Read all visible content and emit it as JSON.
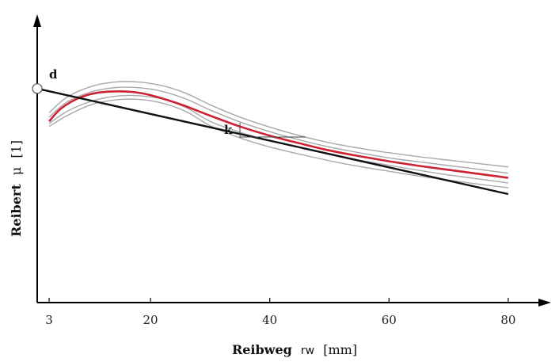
{
  "chart_data": {
    "type": "line",
    "title": "",
    "xlabel": {
      "bold": "Reibweg",
      "symbol": "rw",
      "unit": "[mm]"
    },
    "ylabel": {
      "bold": "Reibert",
      "symbol": "μ",
      "unit": "[1]"
    },
    "x_ticks": [
      3,
      20,
      40,
      60,
      80
    ],
    "x_tick_labels": [
      "3",
      "20",
      "40",
      "60",
      "80"
    ],
    "xlim": [
      1,
      84
    ],
    "ylim": [
      0,
      1
    ],
    "y_ticks": [],
    "grid": false,
    "legend": "none",
    "annotations": [
      {
        "label": "d",
        "meaning": "intercept marker"
      },
      {
        "label": "k",
        "meaning": "slope triangle"
      }
    ],
    "colors": {
      "mean": "#cc2233",
      "band": "#a8a8a8",
      "fit": "#111111"
    },
    "series": [
      {
        "role": "mean",
        "points": [
          [
            3,
            0.63
          ],
          [
            5,
            0.675
          ],
          [
            8,
            0.712
          ],
          [
            11,
            0.73
          ],
          [
            14,
            0.735
          ],
          [
            17,
            0.733
          ],
          [
            20,
            0.722
          ],
          [
            25,
            0.69
          ],
          [
            30,
            0.65
          ],
          [
            35,
            0.612
          ],
          [
            40,
            0.58
          ],
          [
            45,
            0.553
          ],
          [
            50,
            0.528
          ],
          [
            55,
            0.508
          ],
          [
            60,
            0.49
          ],
          [
            65,
            0.474
          ],
          [
            70,
            0.46
          ],
          [
            75,
            0.446
          ],
          [
            80,
            0.432
          ]
        ]
      },
      {
        "role": "band",
        "points": [
          [
            3,
            0.66
          ],
          [
            6,
            0.715
          ],
          [
            10,
            0.752
          ],
          [
            14,
            0.768
          ],
          [
            18,
            0.768
          ],
          [
            22,
            0.755
          ],
          [
            26,
            0.728
          ],
          [
            30,
            0.688
          ],
          [
            35,
            0.645
          ],
          [
            40,
            0.61
          ],
          [
            45,
            0.58
          ],
          [
            50,
            0.555
          ],
          [
            55,
            0.536
          ],
          [
            60,
            0.52
          ],
          [
            65,
            0.506
          ],
          [
            70,
            0.494
          ],
          [
            75,
            0.482
          ],
          [
            80,
            0.47
          ]
        ]
      },
      {
        "role": "band",
        "points": [
          [
            3,
            0.645
          ],
          [
            6,
            0.698
          ],
          [
            10,
            0.733
          ],
          [
            14,
            0.748
          ],
          [
            18,
            0.748
          ],
          [
            22,
            0.735
          ],
          [
            26,
            0.708
          ],
          [
            30,
            0.67
          ],
          [
            35,
            0.628
          ],
          [
            40,
            0.594
          ],
          [
            45,
            0.565
          ],
          [
            50,
            0.54
          ],
          [
            55,
            0.52
          ],
          [
            60,
            0.502
          ],
          [
            65,
            0.488
          ],
          [
            70,
            0.475
          ],
          [
            75,
            0.462
          ],
          [
            80,
            0.448
          ]
        ]
      },
      {
        "role": "band",
        "points": [
          [
            3,
            0.622
          ],
          [
            6,
            0.665
          ],
          [
            10,
            0.7
          ],
          [
            14,
            0.718
          ],
          [
            18,
            0.72
          ],
          [
            22,
            0.708
          ],
          [
            26,
            0.678
          ],
          [
            30,
            0.63
          ],
          [
            35,
            0.592
          ],
          [
            40,
            0.562
          ],
          [
            45,
            0.538
          ],
          [
            50,
            0.515
          ],
          [
            55,
            0.494
          ],
          [
            60,
            0.476
          ],
          [
            65,
            0.458
          ],
          [
            70,
            0.442
          ],
          [
            75,
            0.428
          ],
          [
            80,
            0.414
          ]
        ]
      },
      {
        "role": "band",
        "points": [
          [
            3,
            0.612
          ],
          [
            6,
            0.65
          ],
          [
            10,
            0.688
          ],
          [
            14,
            0.705
          ],
          [
            18,
            0.707
          ],
          [
            22,
            0.694
          ],
          [
            26,
            0.664
          ],
          [
            30,
            0.615
          ],
          [
            35,
            0.572
          ],
          [
            40,
            0.54
          ],
          [
            45,
            0.515
          ],
          [
            50,
            0.492
          ],
          [
            55,
            0.472
          ],
          [
            60,
            0.455
          ],
          [
            65,
            0.438
          ],
          [
            70,
            0.424
          ],
          [
            75,
            0.41
          ],
          [
            80,
            0.397
          ]
        ]
      },
      {
        "role": "fit",
        "points": [
          [
            1,
            0.745
          ],
          [
            80,
            0.375
          ]
        ]
      }
    ],
    "slope_triangle": {
      "x_start": 35,
      "x_end": 46,
      "y_top": 0.625,
      "y_bottom": 0.575
    },
    "intercept_marker": {
      "x": 1,
      "y": 0.745
    }
  }
}
